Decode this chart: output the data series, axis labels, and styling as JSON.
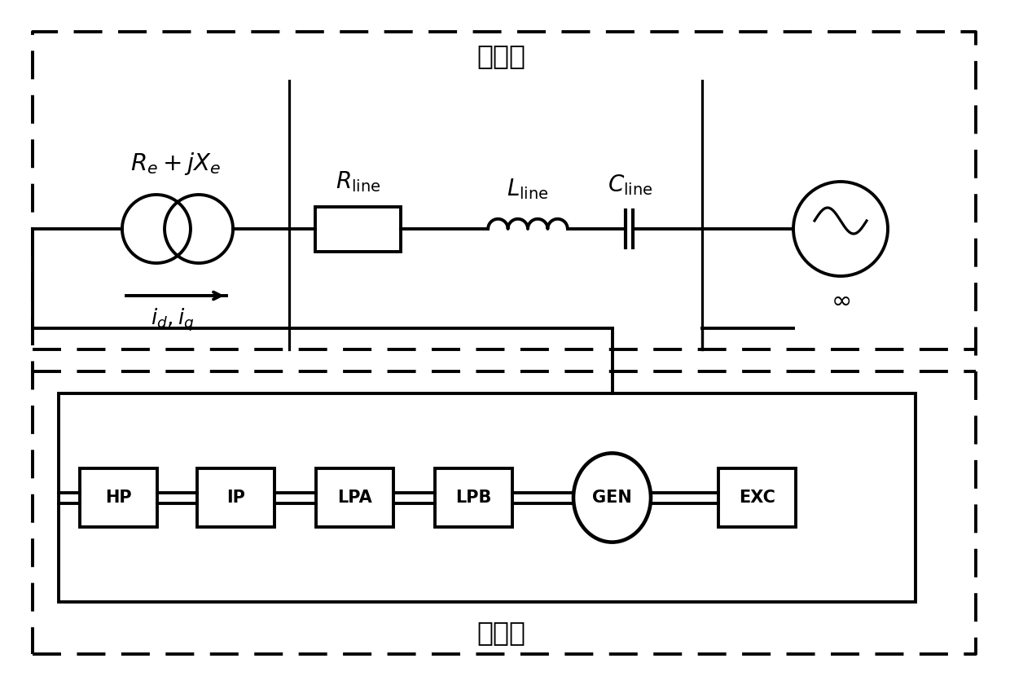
{
  "top_label": "电网侧",
  "bottom_label": "电源侧",
  "components": [
    "HP",
    "IP",
    "LPA",
    "LPB",
    "GEN",
    "EXC"
  ],
  "font_size_chinese": 24,
  "font_size_label": 20,
  "font_size_component": 15,
  "bg_color": "#ffffff",
  "line_color": "#000000",
  "lw": 2.0,
  "lwt": 2.8
}
